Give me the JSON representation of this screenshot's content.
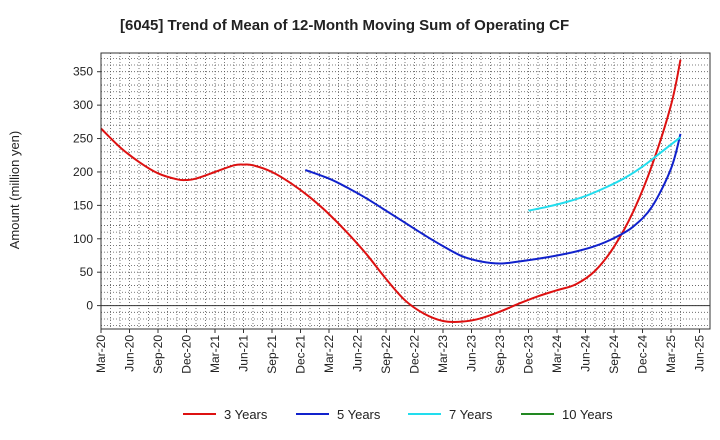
{
  "chart_data": {
    "type": "line",
    "title": "[6045]  Trend of Mean of 12-Month Moving Sum of Operating CF",
    "xlabel": "",
    "ylabel": "Amount (million yen)",
    "ylim": [
      -35,
      378
    ],
    "yticks": [
      0,
      50,
      100,
      150,
      200,
      250,
      300,
      350
    ],
    "grid": true,
    "legend_position": "bottom",
    "x_index_max": 61,
    "x_ticks": [
      {
        "i": 0,
        "label": "Mar-20"
      },
      {
        "i": 3,
        "label": "Jun-20"
      },
      {
        "i": 6,
        "label": "Sep-20"
      },
      {
        "i": 9,
        "label": "Dec-20"
      },
      {
        "i": 12,
        "label": "Mar-21"
      },
      {
        "i": 15,
        "label": "Jun-21"
      },
      {
        "i": 18,
        "label": "Sep-21"
      },
      {
        "i": 21,
        "label": "Dec-21"
      },
      {
        "i": 24,
        "label": "Mar-22"
      },
      {
        "i": 27,
        "label": "Jun-22"
      },
      {
        "i": 30,
        "label": "Sep-22"
      },
      {
        "i": 33,
        "label": "Dec-22"
      },
      {
        "i": 36,
        "label": "Mar-23"
      },
      {
        "i": 39,
        "label": "Jun-23"
      },
      {
        "i": 42,
        "label": "Sep-23"
      },
      {
        "i": 45,
        "label": "Dec-23"
      },
      {
        "i": 48,
        "label": "Mar-24"
      },
      {
        "i": 51,
        "label": "Jun-24"
      },
      {
        "i": 54,
        "label": "Sep-24"
      },
      {
        "i": 57,
        "label": "Dec-24"
      },
      {
        "i": 60,
        "label": "Mar-25"
      },
      {
        "i": 63,
        "label": "Jun-25"
      }
    ],
    "series": [
      {
        "name": "3 Years",
        "color": "#dd1111",
        "points": [
          [
            0,
            265
          ],
          [
            2,
            237
          ],
          [
            4,
            215
          ],
          [
            6,
            198
          ],
          [
            8,
            189
          ],
          [
            9,
            188
          ],
          [
            10,
            190
          ],
          [
            12,
            200
          ],
          [
            14,
            210
          ],
          [
            15,
            211
          ],
          [
            16,
            210
          ],
          [
            18,
            200
          ],
          [
            20,
            183
          ],
          [
            22,
            162
          ],
          [
            24,
            137
          ],
          [
            26,
            108
          ],
          [
            28,
            76
          ],
          [
            30,
            40
          ],
          [
            32,
            8
          ],
          [
            34,
            -12
          ],
          [
            36,
            -23
          ],
          [
            38,
            -24
          ],
          [
            40,
            -19
          ],
          [
            42,
            -9
          ],
          [
            44,
            3
          ],
          [
            46,
            14
          ],
          [
            48,
            23
          ],
          [
            50,
            32
          ],
          [
            52,
            52
          ],
          [
            54,
            88
          ],
          [
            56,
            140
          ],
          [
            58,
            210
          ],
          [
            60,
            300
          ],
          [
            61,
            368
          ]
        ]
      },
      {
        "name": "5 Years",
        "color": "#1122cc",
        "points": [
          [
            21.5,
            203
          ],
          [
            24,
            190
          ],
          [
            26,
            176
          ],
          [
            28,
            160
          ],
          [
            30,
            142
          ],
          [
            32,
            124
          ],
          [
            34,
            106
          ],
          [
            36,
            89
          ],
          [
            38,
            74
          ],
          [
            40,
            66
          ],
          [
            42,
            63
          ],
          [
            44,
            66
          ],
          [
            46,
            70
          ],
          [
            48,
            75
          ],
          [
            50,
            81
          ],
          [
            52,
            89
          ],
          [
            54,
            101
          ],
          [
            56,
            118
          ],
          [
            58,
            148
          ],
          [
            60,
            205
          ],
          [
            61,
            257
          ]
        ]
      },
      {
        "name": "7 Years",
        "color": "#22ddee",
        "points": [
          [
            45,
            142
          ],
          [
            47,
            148
          ],
          [
            49,
            155
          ],
          [
            51,
            164
          ],
          [
            53,
            176
          ],
          [
            55,
            190
          ],
          [
            57,
            208
          ],
          [
            59,
            230
          ],
          [
            61,
            252
          ]
        ]
      },
      {
        "name": "10 Years",
        "color": "#228822",
        "points": []
      }
    ]
  }
}
